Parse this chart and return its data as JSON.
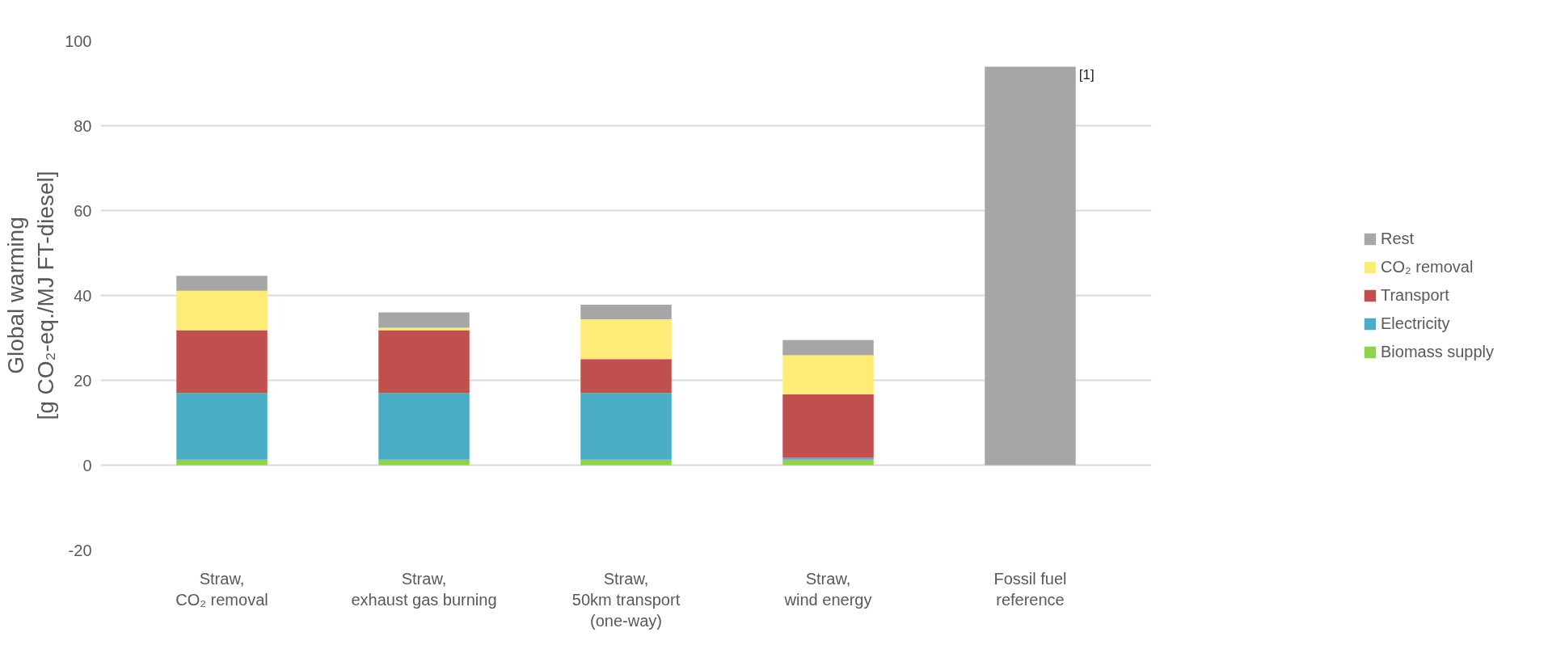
{
  "chart_data": {
    "type": "bar",
    "stacked": true,
    "ylabel": "Global warming\n[g CO₂-eq./MJ FT-diesel]",
    "categories": [
      "Straw,\nCO₂ removal",
      "Straw,\nexhaust gas burning",
      "Straw,\n50km transport\n(one-way)",
      "Straw,\nwind energy",
      "Fossil fuel\nreference"
    ],
    "series": [
      {
        "name": "Biomass supply",
        "color": "#92d050",
        "values": [
          1.3,
          1.3,
          1.3,
          1.3,
          null
        ]
      },
      {
        "name": "Electricity",
        "color": "#4bacc6",
        "values": [
          15.7,
          15.7,
          15.7,
          0.4,
          null
        ]
      },
      {
        "name": "Transport",
        "color": "#c0504d",
        "values": [
          14.8,
          14.8,
          8.0,
          15.0,
          null
        ]
      },
      {
        "name": "CO₂ removal",
        "color": "#ffeb78",
        "values": [
          9.3,
          0.6,
          9.4,
          9.2,
          null
        ]
      },
      {
        "name": "Rest",
        "color": "#a6a6a6",
        "values": [
          3.5,
          3.6,
          3.4,
          3.6,
          93.9
        ]
      }
    ],
    "ylim": [
      -20,
      100
    ],
    "yticks": [
      -20,
      0,
      20,
      40,
      60,
      80,
      100
    ],
    "grid": "y",
    "legend": "right",
    "annotations": [
      "[1]"
    ]
  }
}
